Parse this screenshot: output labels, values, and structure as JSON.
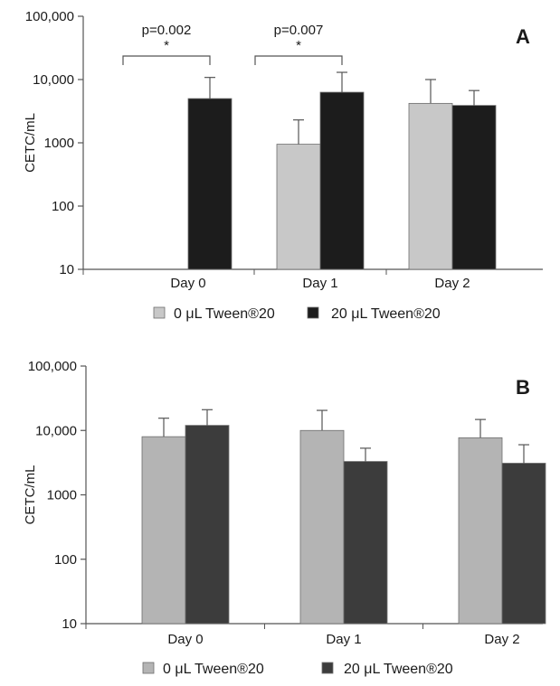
{
  "chart_data": [
    {
      "type": "bar",
      "panel_label": "A",
      "categories": [
        "Day 0",
        "Day 1",
        "Day 2"
      ],
      "series": [
        {
          "name": "0 μL Tween®20",
          "values": [
            null,
            950,
            4200
          ],
          "error_upper": [
            null,
            2300,
            10000
          ],
          "color": "#c8c8c8"
        },
        {
          "name": "20 μL Tween®20",
          "values": [
            5000,
            6300,
            3900
          ],
          "error_upper": [
            10800,
            13000,
            6700
          ],
          "color": "#1c1c1c"
        }
      ],
      "ylabel": "CETC/mL",
      "yscale": "log",
      "ylim": [
        10,
        100000
      ],
      "yticks": [
        10,
        100,
        1000,
        10000,
        100000
      ],
      "ytick_labels": [
        "10",
        "100",
        "1000",
        "10,000",
        "100,000"
      ],
      "annotations": [
        {
          "category": "Day 0",
          "text": "p=0.002",
          "mark": "*"
        },
        {
          "category": "Day 1",
          "text": "p=0.007",
          "mark": "*"
        }
      ],
      "legend_position": "bottom"
    },
    {
      "type": "bar",
      "panel_label": "B",
      "categories": [
        "Day 0",
        "Day 1",
        "Day 2"
      ],
      "series": [
        {
          "name": "0 μL Tween®20",
          "values": [
            8000,
            10000,
            7700
          ],
          "error_upper": [
            15500,
            20500,
            14800
          ],
          "color": "#b4b4b4"
        },
        {
          "name": "20 μL Tween®20",
          "values": [
            12000,
            3300,
            3100
          ],
          "error_upper": [
            21000,
            5300,
            6000
          ],
          "color": "#3c3c3c"
        }
      ],
      "ylabel": "CETC/mL",
      "yscale": "log",
      "ylim": [
        10,
        100000
      ],
      "yticks": [
        10,
        100,
        1000,
        10000,
        100000
      ],
      "ytick_labels": [
        "10",
        "100",
        "1000",
        "10,000",
        "100,000"
      ],
      "annotations": [],
      "legend_position": "bottom"
    }
  ]
}
